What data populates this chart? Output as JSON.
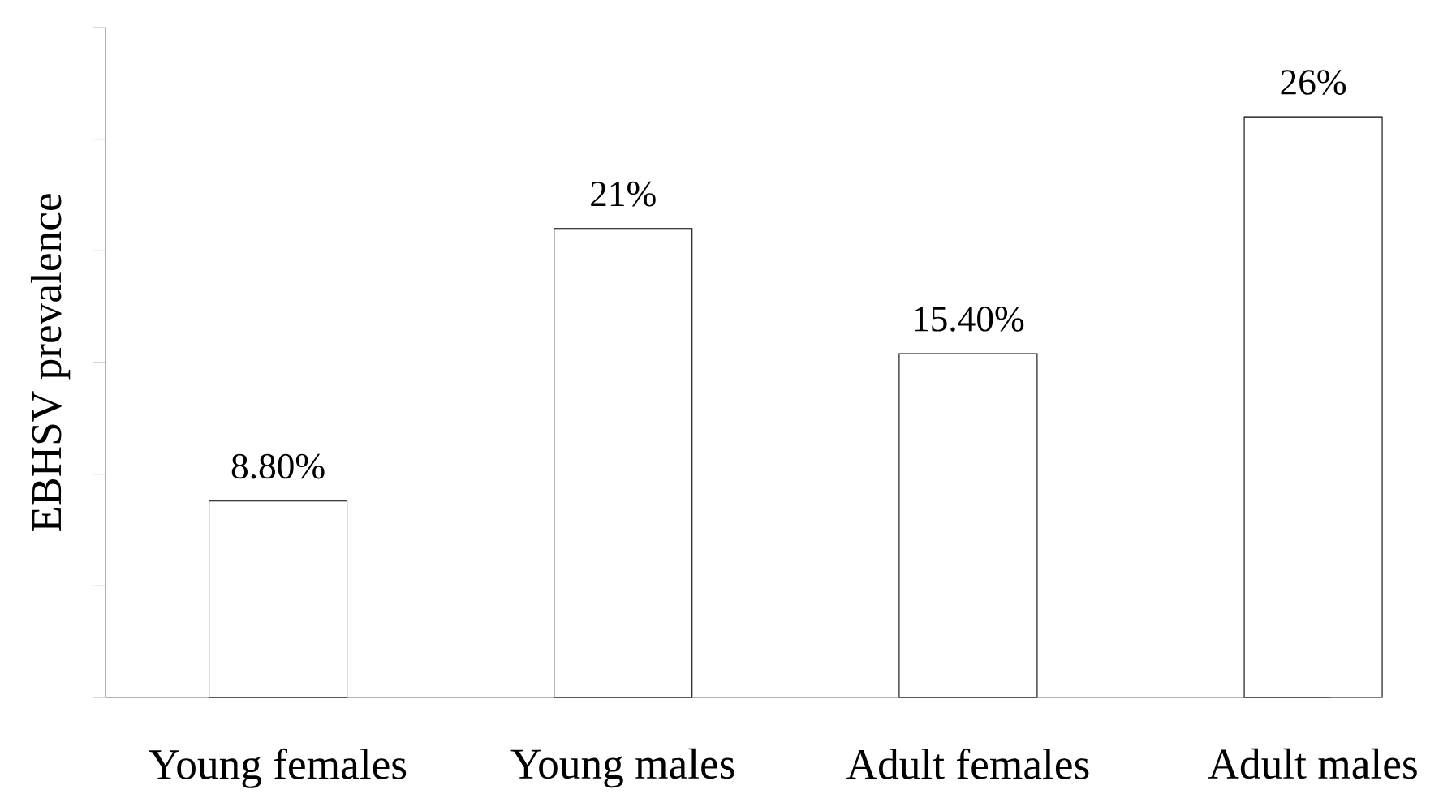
{
  "chart_data": {
    "type": "bar",
    "ylabel": "EBHSV prevalence",
    "categories": [
      "Young females",
      "Young males",
      "Adult females",
      "Adult males"
    ],
    "values": [
      8.8,
      21,
      15.4,
      26
    ],
    "value_labels": [
      "8.80%",
      "21%",
      "15.40%",
      "26%"
    ],
    "color": "#ffffff",
    "ylim": [
      0,
      30
    ],
    "yticks": [
      {
        "value": 0,
        "label": null
      },
      {
        "value": 5,
        "label": null
      },
      {
        "value": 10,
        "label": null
      },
      {
        "value": 15,
        "label": null
      },
      {
        "value": 20,
        "label": null
      },
      {
        "value": 25,
        "label": null
      },
      {
        "value": 30,
        "label": null
      }
    ],
    "tick_labels": "x",
    "grid": false
  }
}
